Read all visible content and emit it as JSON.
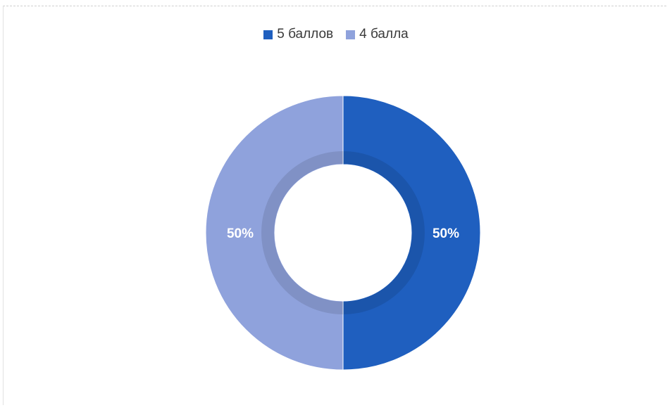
{
  "chart_data": {
    "type": "pie",
    "variant": "donut",
    "title": "",
    "legend_position": "top",
    "series": [
      {
        "name": "5 баллов",
        "value": 50,
        "label": "50%",
        "color": "#1f5fbf"
      },
      {
        "name": "4 балла",
        "value": 50,
        "label": "50%",
        "color": "#8fa2dc"
      }
    ]
  }
}
